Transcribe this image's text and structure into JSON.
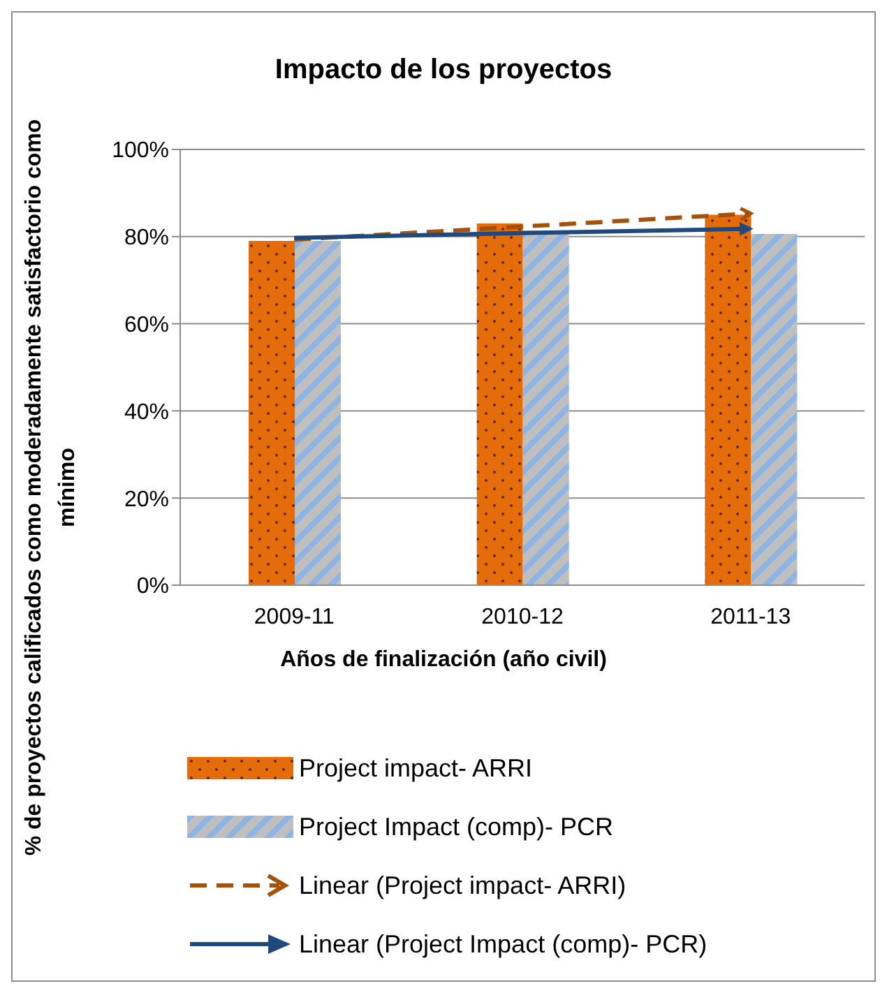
{
  "chart_data": {
    "type": "bar",
    "title": "Impacto de los proyectos",
    "xlabel": "Años de finalización (año civil)",
    "ylabel": "% de proyectos calificados como moderadamente satisfactorio como mínimo",
    "categories": [
      "2009-11",
      "2010-12",
      "2011-13"
    ],
    "series": [
      {
        "name": "Project impact- ARRI",
        "color": "#e46c0a",
        "values": [
          79,
          83,
          85
        ]
      },
      {
        "name": "Project Impact (comp)- PCR",
        "color": "#8eb4e3",
        "values": [
          79,
          81.4,
          80.6
        ]
      },
      {
        "name": "Linear (Project impact- ARRI)",
        "type": "line",
        "color": "#a5510c",
        "line_style": "dashed",
        "values": [
          79.3,
          82.3,
          85.3
        ]
      },
      {
        "name": "Linear (Project Impact (comp)- PCR)",
        "type": "line",
        "color": "#1f497d",
        "line_style": "solid",
        "values": [
          79.7,
          80.8,
          81.8
        ]
      }
    ],
    "ylim": [
      0,
      100
    ],
    "yticks": [
      {
        "value": 0,
        "label": "0%"
      },
      {
        "value": 20,
        "label": "20%"
      },
      {
        "value": 40,
        "label": "40%"
      },
      {
        "value": 60,
        "label": "60%"
      },
      {
        "value": 80,
        "label": "80%"
      },
      {
        "value": 100,
        "label": "100%"
      }
    ],
    "grid": "y",
    "legend": "bottom",
    "marker": "none"
  }
}
